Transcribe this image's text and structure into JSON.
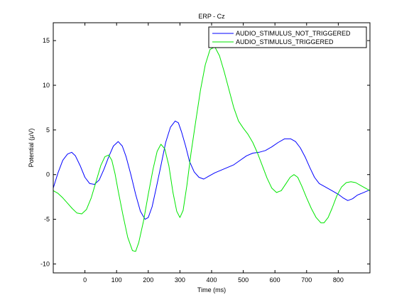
{
  "chart_data": {
    "type": "line",
    "title": "ERP - Cz",
    "xlabel": "Time (ms)",
    "ylabel": "Potential (µV)",
    "xlim": [
      -100,
      900
    ],
    "ylim": [
      -11,
      17
    ],
    "xticks": [
      0,
      100,
      200,
      300,
      400,
      500,
      600,
      700,
      800
    ],
    "yticks": [
      -10,
      -5,
      0,
      5,
      10,
      15
    ],
    "grid": false,
    "legend_position": "top-right",
    "series": [
      {
        "name": "AUDIO_STIMULUS_NOT_TRIGGERED",
        "color": "#0000ff",
        "points": [
          [
            -100,
            -1.5
          ],
          [
            -85,
            0.2
          ],
          [
            -70,
            1.6
          ],
          [
            -55,
            2.3
          ],
          [
            -42,
            2.5
          ],
          [
            -30,
            2.1
          ],
          [
            -15,
            1.0
          ],
          [
            0,
            -0.3
          ],
          [
            15,
            -1.0
          ],
          [
            30,
            -1.1
          ],
          [
            45,
            -0.6
          ],
          [
            60,
            0.6
          ],
          [
            75,
            2.0
          ],
          [
            90,
            3.2
          ],
          [
            105,
            3.7
          ],
          [
            118,
            3.2
          ],
          [
            130,
            2.0
          ],
          [
            145,
            0.0
          ],
          [
            160,
            -2.2
          ],
          [
            175,
            -4.1
          ],
          [
            190,
            -5.0
          ],
          [
            200,
            -4.8
          ],
          [
            212,
            -3.6
          ],
          [
            225,
            -1.5
          ],
          [
            240,
            1.0
          ],
          [
            255,
            3.6
          ],
          [
            270,
            5.3
          ],
          [
            285,
            6.0
          ],
          [
            295,
            5.8
          ],
          [
            305,
            4.8
          ],
          [
            318,
            3.2
          ],
          [
            330,
            1.5
          ],
          [
            345,
            0.3
          ],
          [
            360,
            -0.3
          ],
          [
            375,
            -0.5
          ],
          [
            390,
            -0.2
          ],
          [
            410,
            0.2
          ],
          [
            430,
            0.5
          ],
          [
            450,
            0.8
          ],
          [
            470,
            1.1
          ],
          [
            490,
            1.6
          ],
          [
            510,
            2.1
          ],
          [
            530,
            2.4
          ],
          [
            550,
            2.5
          ],
          [
            570,
            2.7
          ],
          [
            590,
            3.1
          ],
          [
            610,
            3.6
          ],
          [
            630,
            4.0
          ],
          [
            650,
            4.0
          ],
          [
            665,
            3.7
          ],
          [
            680,
            3.0
          ],
          [
            695,
            2.0
          ],
          [
            710,
            0.8
          ],
          [
            725,
            -0.3
          ],
          [
            740,
            -1.0
          ],
          [
            760,
            -1.4
          ],
          [
            780,
            -1.8
          ],
          [
            800,
            -2.2
          ],
          [
            815,
            -2.6
          ],
          [
            830,
            -2.9
          ],
          [
            845,
            -2.7
          ],
          [
            860,
            -2.3
          ],
          [
            880,
            -2.0
          ],
          [
            900,
            -1.7
          ]
        ]
      },
      {
        "name": "AUDIO_STIMULUS_TRIGGERED",
        "color": "#00e600",
        "points": [
          [
            -100,
            -1.8
          ],
          [
            -85,
            -2.1
          ],
          [
            -70,
            -2.6
          ],
          [
            -55,
            -3.2
          ],
          [
            -40,
            -3.8
          ],
          [
            -25,
            -4.3
          ],
          [
            -10,
            -4.4
          ],
          [
            5,
            -3.9
          ],
          [
            20,
            -2.6
          ],
          [
            35,
            -0.8
          ],
          [
            50,
            1.0
          ],
          [
            63,
            2.0
          ],
          [
            75,
            2.2
          ],
          [
            85,
            1.6
          ],
          [
            95,
            0.1
          ],
          [
            105,
            -1.8
          ],
          [
            120,
            -4.5
          ],
          [
            135,
            -7.0
          ],
          [
            150,
            -8.5
          ],
          [
            160,
            -8.6
          ],
          [
            170,
            -7.6
          ],
          [
            185,
            -5.2
          ],
          [
            200,
            -2.2
          ],
          [
            215,
            0.6
          ],
          [
            228,
            2.6
          ],
          [
            240,
            3.4
          ],
          [
            252,
            2.9
          ],
          [
            265,
            1.0
          ],
          [
            278,
            -2.0
          ],
          [
            290,
            -4.1
          ],
          [
            300,
            -4.8
          ],
          [
            310,
            -4.0
          ],
          [
            322,
            -1.2
          ],
          [
            335,
            2.4
          ],
          [
            350,
            6.0
          ],
          [
            365,
            9.5
          ],
          [
            380,
            12.3
          ],
          [
            395,
            14.0
          ],
          [
            410,
            14.3
          ],
          [
            425,
            13.3
          ],
          [
            440,
            11.5
          ],
          [
            455,
            9.5
          ],
          [
            470,
            7.5
          ],
          [
            485,
            6.0
          ],
          [
            500,
            5.2
          ],
          [
            515,
            4.5
          ],
          [
            530,
            3.6
          ],
          [
            545,
            2.4
          ],
          [
            560,
            1.0
          ],
          [
            575,
            -0.4
          ],
          [
            590,
            -1.5
          ],
          [
            605,
            -2.0
          ],
          [
            620,
            -1.8
          ],
          [
            635,
            -1.0
          ],
          [
            648,
            -0.3
          ],
          [
            660,
            0.0
          ],
          [
            672,
            -0.3
          ],
          [
            685,
            -1.3
          ],
          [
            700,
            -2.6
          ],
          [
            715,
            -3.8
          ],
          [
            730,
            -4.8
          ],
          [
            745,
            -5.4
          ],
          [
            755,
            -5.4
          ],
          [
            768,
            -4.8
          ],
          [
            780,
            -3.8
          ],
          [
            795,
            -2.4
          ],
          [
            810,
            -1.4
          ],
          [
            825,
            -0.9
          ],
          [
            840,
            -0.8
          ],
          [
            855,
            -0.9
          ],
          [
            870,
            -1.2
          ],
          [
            885,
            -1.5
          ],
          [
            900,
            -1.8
          ]
        ]
      }
    ]
  }
}
